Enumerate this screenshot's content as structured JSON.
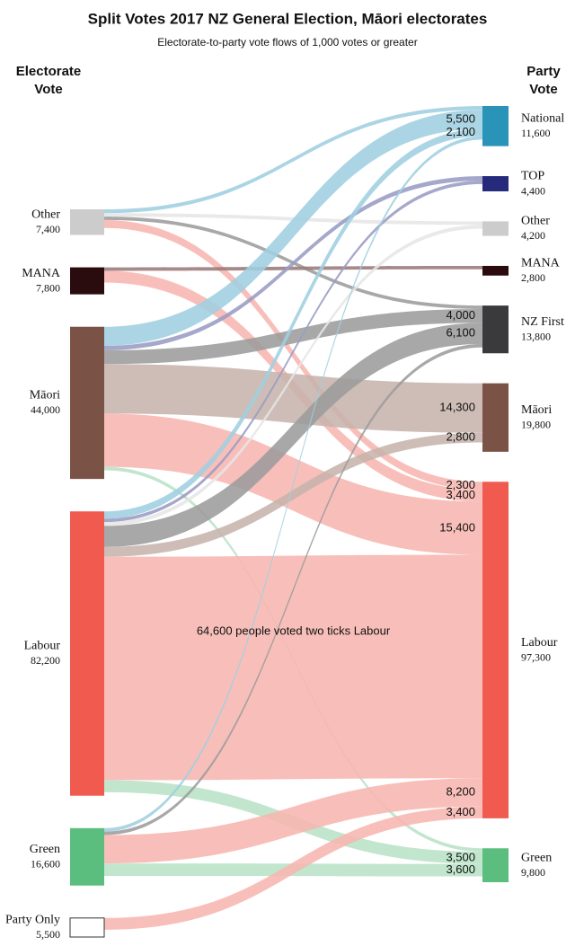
{
  "chart_data": {
    "type": "sankey",
    "title": "Split Votes 2017 NZ General Election, Māori electorates",
    "subtitle": "Electorate-to-party vote flows of 1,000 votes or greater",
    "left_heading": [
      "Electorate",
      "Vote"
    ],
    "right_heading": [
      "Party",
      "Vote"
    ],
    "sources": [
      {
        "name": "Other",
        "value": 7400,
        "value_label": "7,400",
        "color": "#cccccc",
        "flows": [
          {
            "to": "National",
            "value": 1100
          },
          {
            "to": "Other",
            "value": 1000
          },
          {
            "to": "NZ First",
            "value": 1000
          },
          {
            "to": "Labour",
            "value": 2300,
            "value_label": "2,300"
          }
        ]
      },
      {
        "name": "MANA",
        "value": 7800,
        "value_label": "7,800",
        "color": "#2a0b0e",
        "flows": [
          {
            "to": "MANA",
            "value": 1000
          },
          {
            "to": "Labour",
            "value": 3400,
            "value_label": "3,400"
          }
        ]
      },
      {
        "name": "Māori",
        "value": 44000,
        "value_label": "44,000",
        "color": "#7b5346",
        "flows": [
          {
            "to": "National",
            "value": 5500,
            "value_label": "5,500"
          },
          {
            "to": "TOP",
            "value": 1300
          },
          {
            "to": "NZ First",
            "value": 4000,
            "value_label": "4,000"
          },
          {
            "to": "Māori",
            "value": 14300,
            "value_label": "14,300"
          },
          {
            "to": "Labour",
            "value": 15400,
            "value_label": "15,400"
          },
          {
            "to": "Green",
            "value": 1000
          }
        ]
      },
      {
        "name": "Labour",
        "value": 82200,
        "value_label": "82,200",
        "color": "#f05a4f",
        "flows": [
          {
            "to": "National",
            "value": 2100,
            "value_label": "2,100"
          },
          {
            "to": "TOP",
            "value": 1000
          },
          {
            "to": "Other",
            "value": 1100
          },
          {
            "to": "NZ First",
            "value": 6100,
            "value_label": "6,100"
          },
          {
            "to": "Māori",
            "value": 2800,
            "value_label": "2,800"
          },
          {
            "to": "Labour",
            "value": 64600,
            "annotation": "64,600 people voted two ticks Labour"
          },
          {
            "to": "Green",
            "value": 3500,
            "value_label": "3,500"
          }
        ]
      },
      {
        "name": "Green",
        "value": 16600,
        "value_label": "16,600",
        "color": "#5bbd7e",
        "flows": [
          {
            "to": "National",
            "value": 1000
          },
          {
            "to": "NZ First",
            "value": 1000
          },
          {
            "to": "Labour",
            "value": 8200,
            "value_label": "8,200"
          },
          {
            "to": "Green",
            "value": 3600,
            "value_label": "3,600"
          }
        ]
      },
      {
        "name": "Party Only",
        "value": 5500,
        "value_label": "5,500",
        "color": "#ffffff",
        "stroke": "#333333",
        "flows": [
          {
            "to": "Labour",
            "value": 3400,
            "value_label": "3,400"
          }
        ]
      }
    ],
    "targets": [
      {
        "name": "National",
        "value": 11600,
        "value_label": "11,600",
        "color": "#2a93b8",
        "flow_color": "#9fcfe0",
        "label_color": "#2a7fab"
      },
      {
        "name": "TOP",
        "value": 4400,
        "value_label": "4,400",
        "color": "#252b7a",
        "flow_color": "#9a9cc4",
        "label_color": "#222222"
      },
      {
        "name": "Other",
        "value": 4200,
        "value_label": "4,200",
        "color": "#cccccc",
        "flow_color": "#e6e6e6",
        "label_color": "#222222"
      },
      {
        "name": "MANA",
        "value": 2800,
        "value_label": "2,800",
        "color": "#2a0b0e",
        "flow_color": "#9a7a7a",
        "label_color": "#222222"
      },
      {
        "name": "NZ First",
        "value": 13800,
        "value_label": "13,800",
        "color": "#3a3a3c",
        "flow_color": "#9c9c9c",
        "label_color": "#222222"
      },
      {
        "name": "Māori",
        "value": 19800,
        "value_label": "19,800",
        "color": "#7b5346",
        "flow_color": "#c6b4ac",
        "label_color": "#222222"
      },
      {
        "name": "Labour",
        "value": 97300,
        "value_label": "97,300",
        "color": "#f05a4f",
        "flow_color": "#f7b6b0",
        "label_color": "#7a2520"
      },
      {
        "name": "Green",
        "value": 9800,
        "value_label": "9,800",
        "color": "#5bbd7e",
        "flow_color": "#b8e2c6",
        "label_color": "#2d6b40"
      }
    ]
  }
}
